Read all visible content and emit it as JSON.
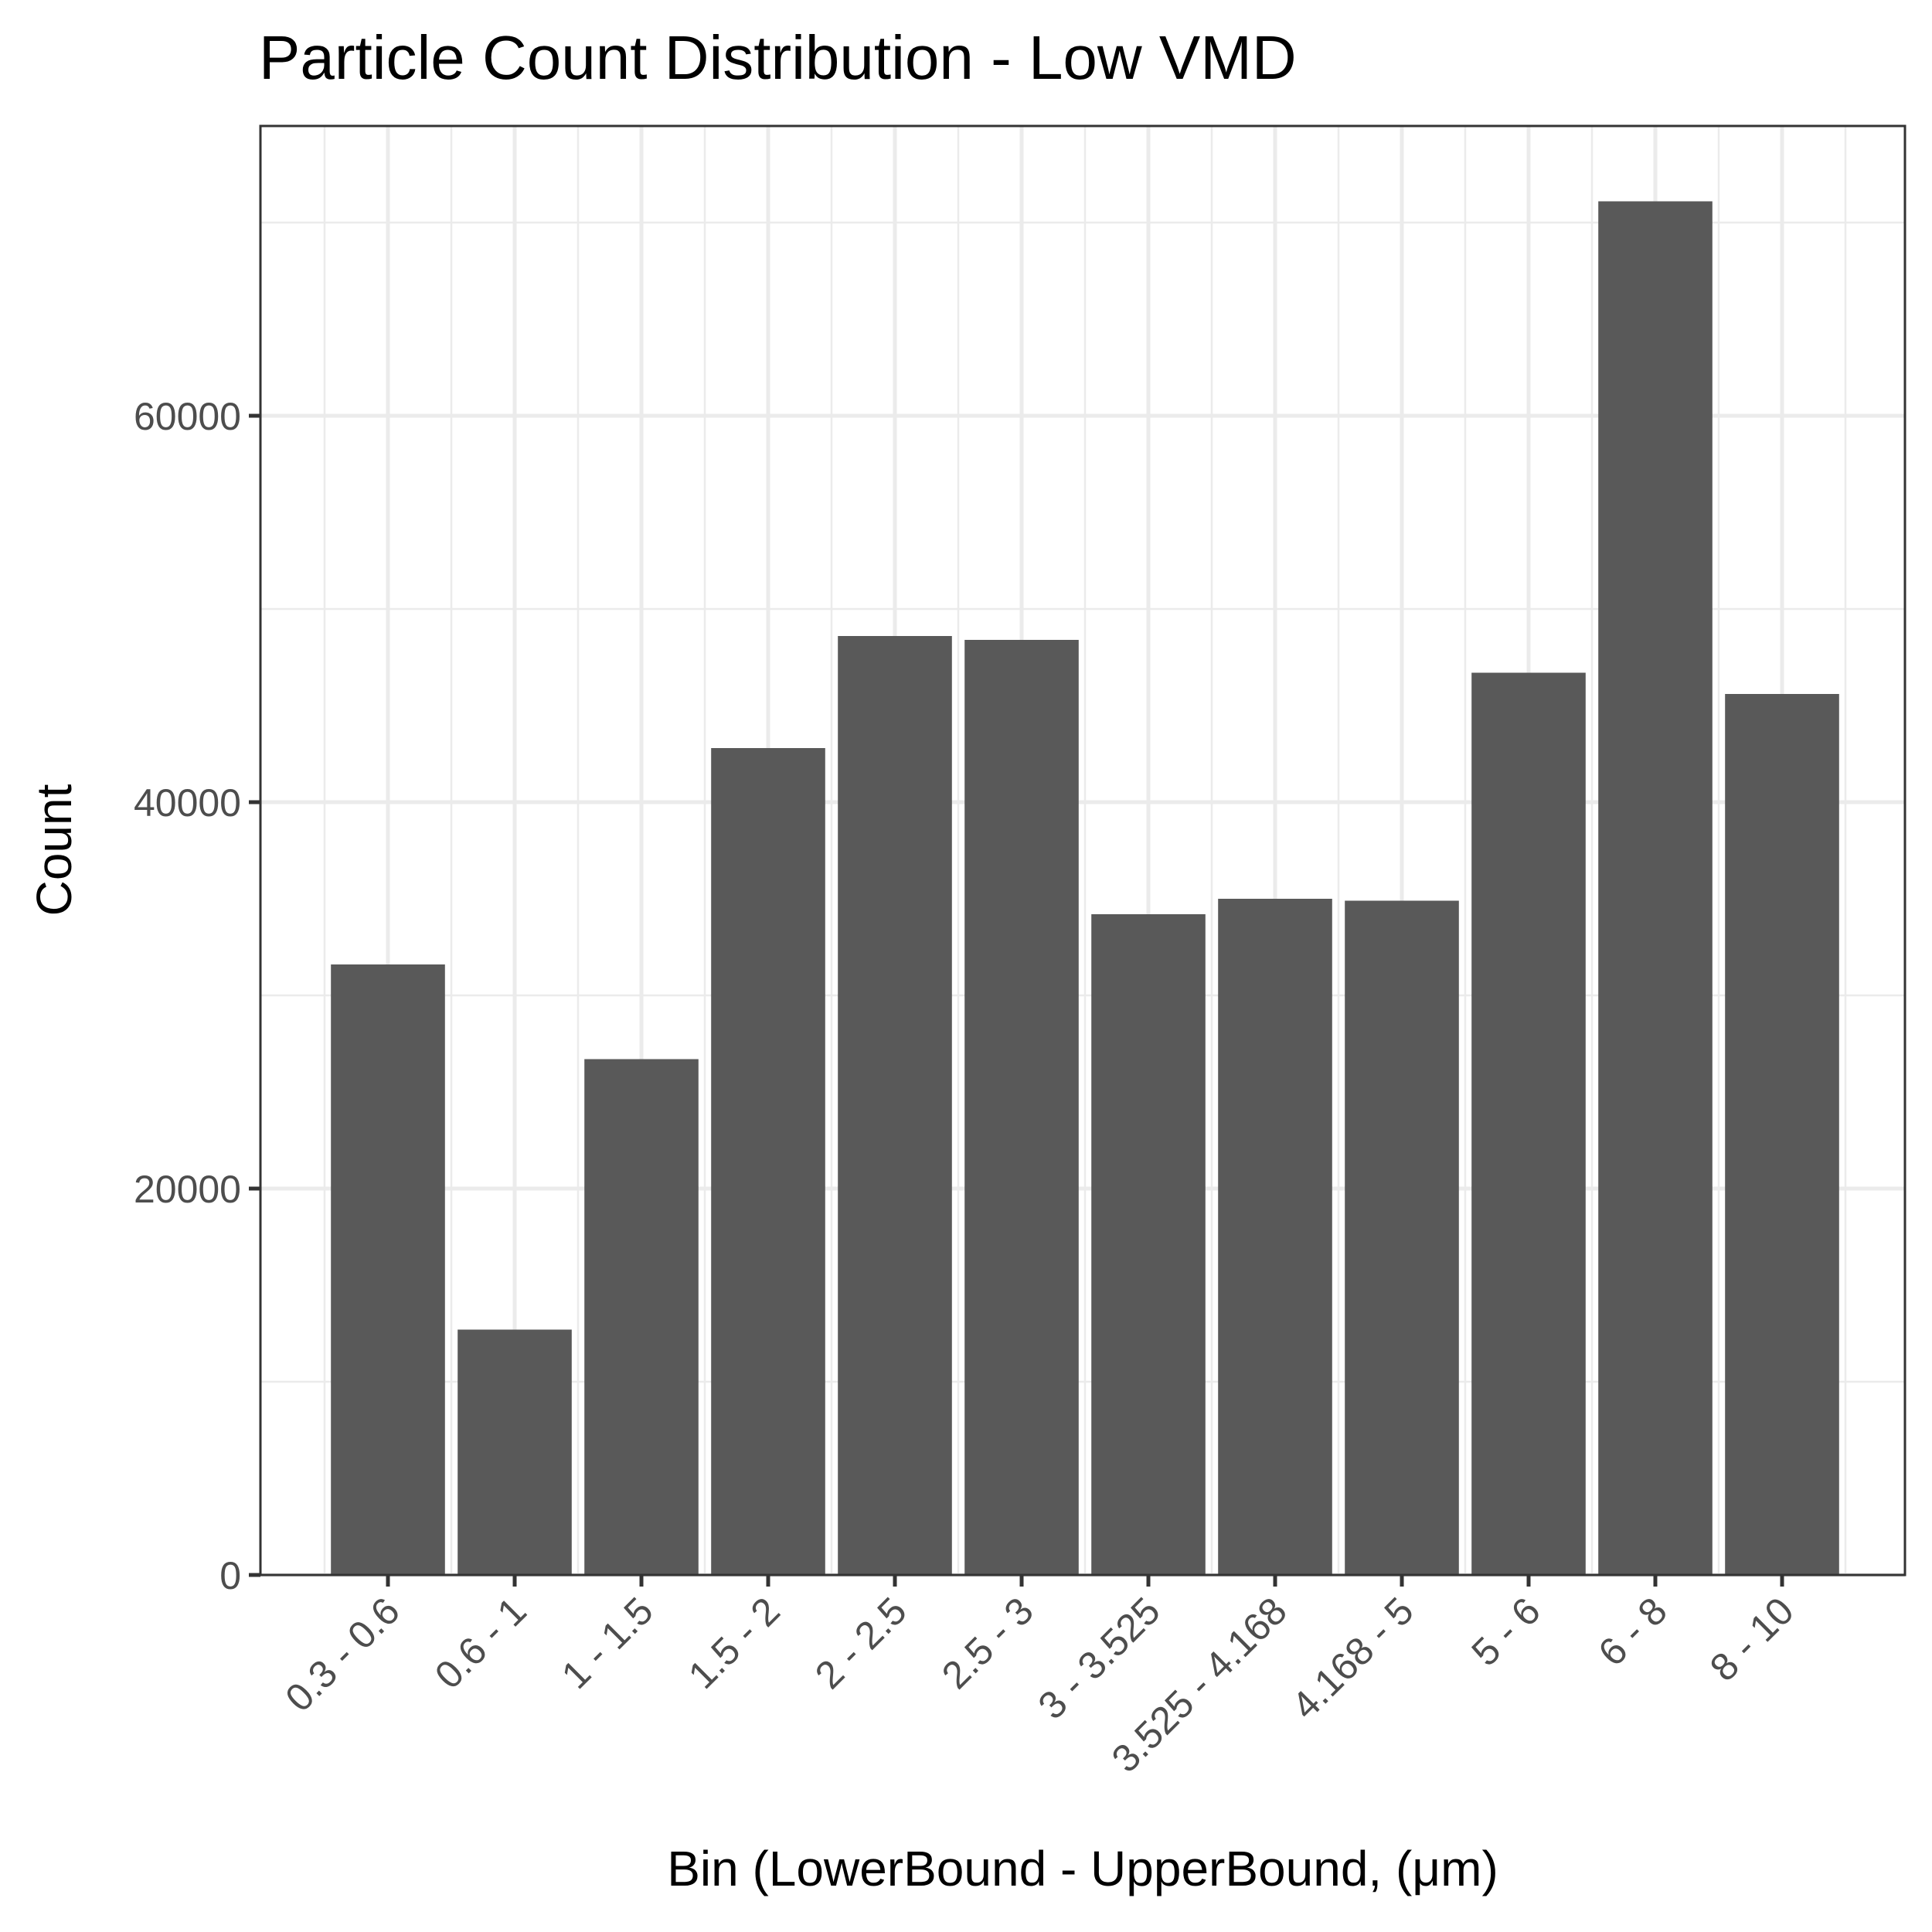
{
  "chart_data": {
    "type": "bar",
    "title": "Particle Count Distribution - Low VMD",
    "xlabel": "Bin (LowerBound - UpperBound, (μm)",
    "ylabel": "Count",
    "categories": [
      "0.3 - 0.6",
      "0.6 - 1",
      "1 - 1.5",
      "1.5 - 2",
      "2 - 2.5",
      "2.5 - 3",
      "3 - 3.525",
      "3.525 - 4.168",
      "4.168 - 5",
      "5 - 6",
      "6 - 8",
      "8 - 10"
    ],
    "values": [
      31600,
      12700,
      26700,
      42800,
      48600,
      48400,
      34200,
      35000,
      34900,
      46700,
      71100,
      45600
    ],
    "ylim": [
      0,
      75000
    ],
    "yticks": [
      0,
      20000,
      40000,
      60000
    ],
    "ytick_labels": [
      "0",
      "20000",
      "40000",
      "60000"
    ],
    "grid": true,
    "bar_color": "#595959"
  }
}
